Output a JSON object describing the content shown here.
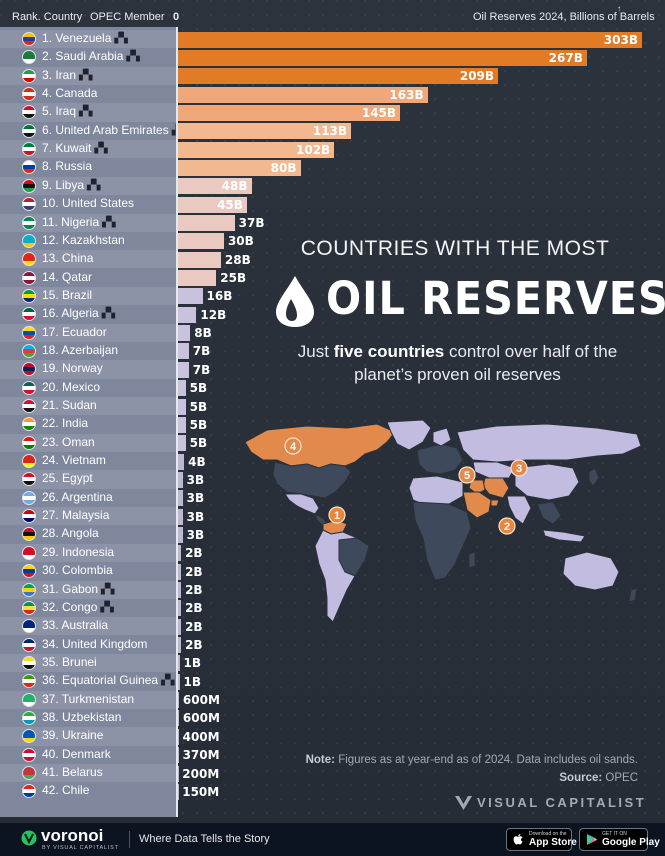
{
  "header": {
    "rank_country": "Rank. Country",
    "opec_member": "OPEC Member",
    "zero": "0",
    "reserves_axis": "Oil Reserves 2024, Billions of Barrels"
  },
  "title": {
    "line1": "COUNTRIES WITH THE MOST",
    "line2": "OIL RESERVES",
    "subtitle_pre": "Just ",
    "subtitle_bold": "five countries",
    "subtitle_post": " control over half of the planet’s proven oil reserves"
  },
  "map_markers": [
    "1",
    "2",
    "3",
    "4",
    "5"
  ],
  "note": {
    "label": "Note:",
    "text": "Figures as at year-end as of 2024. Data includes oil sands.",
    "source_label": "Source:",
    "source_text": "OPEC"
  },
  "brand": {
    "visual_capitalist": "VISUAL CAPITALIST",
    "voronoi": "voronoi",
    "voronoi_sub": "BY VISUAL CAPITALIST",
    "tagline": "Where Data Tells the Story",
    "app_store_small": "Download on the",
    "app_store": "App Store",
    "google_play_small": "GET IT ON",
    "google_play": "Google Play"
  },
  "colors": {
    "bar_top": "#e27b25",
    "bar_mid": "#f1c8b2",
    "bar_low": "#c9c2df",
    "bar_tail": "#bdb7d6",
    "panel": "#7f879d",
    "marker": "#e8873a",
    "map_land_dark": "#3e4a5c",
    "map_land_light": "#c2bde0",
    "map_land_orange": "#e18a4c"
  },
  "chart_data": {
    "type": "bar",
    "orientation": "horizontal",
    "title": "COUNTRIES WITH THE MOST OIL RESERVES",
    "xlabel": "Oil Reserves 2024, Billions of Barrels",
    "unit": "billion barrels",
    "xlim": [
      0,
      303
    ],
    "categories": [
      "1. Venezuela",
      "2. Saudi Arabia",
      "3. Iran",
      "4. Canada",
      "5. Iraq",
      "6. United Arab Emirates",
      "7. Kuwait",
      "8. Russia",
      "9. Libya",
      "10. United States",
      "11. Nigeria",
      "12. Kazakhstan",
      "13. China",
      "14. Qatar",
      "15. Brazil",
      "16. Algeria",
      "17. Ecuador",
      "18. Azerbaijan",
      "19. Norway",
      "20. Mexico",
      "21. Sudan",
      "22. India",
      "23. Oman",
      "24. Vietnam",
      "25. Egypt",
      "26. Argentina",
      "27. Malaysia",
      "28. Angola",
      "29. Indonesia",
      "30. Colombia",
      "31. Gabon",
      "32. Congo",
      "33. Australia",
      "34. United Kingdom",
      "35. Brunei",
      "36. Equatorial Guinea",
      "37. Turkmenistan",
      "38. Uzbekistan",
      "39. Ukraine",
      "40. Denmark",
      "41. Belarus",
      "42. Chile"
    ],
    "values": [
      303,
      267,
      209,
      163,
      145,
      113,
      102,
      80,
      48,
      45,
      37,
      30,
      28,
      25,
      16,
      12,
      8,
      7,
      7,
      5,
      5,
      5,
      5,
      4,
      3,
      3,
      3,
      3,
      2,
      2,
      2,
      2,
      2,
      2,
      1,
      1,
      0.6,
      0.6,
      0.4,
      0.37,
      0.2,
      0.15
    ],
    "labels": [
      "303B",
      "267B",
      "209B",
      "163B",
      "145B",
      "113B",
      "102B",
      "80B",
      "48B",
      "45B",
      "37B",
      "30B",
      "28B",
      "25B",
      "16B",
      "12B",
      "8B",
      "7B",
      "7B",
      "5B",
      "5B",
      "5B",
      "5B",
      "4B",
      "3B",
      "3B",
      "3B",
      "3B",
      "2B",
      "2B",
      "2B",
      "2B",
      "2B",
      "2B",
      "1B",
      "1B",
      "600M",
      "600M",
      "400M",
      "370M",
      "200M",
      "150M"
    ],
    "opec_member": [
      true,
      true,
      true,
      false,
      true,
      true,
      true,
      false,
      true,
      false,
      true,
      false,
      false,
      false,
      false,
      true,
      false,
      false,
      false,
      false,
      false,
      false,
      false,
      false,
      false,
      false,
      false,
      false,
      false,
      false,
      true,
      true,
      false,
      false,
      false,
      true,
      false,
      false,
      false,
      false,
      false,
      false
    ],
    "flag_colors": [
      [
        "#f5c400",
        "#1e3f9c",
        "#d52b1e"
      ],
      [
        "#1c7a3a",
        "#1c7a3a",
        "#ffffff"
      ],
      [
        "#239f40",
        "#ffffff",
        "#da0000"
      ],
      [
        "#d52b1e",
        "#ffffff",
        "#d52b1e"
      ],
      [
        "#ce1126",
        "#ffffff",
        "#111111"
      ],
      [
        "#00732f",
        "#ffffff",
        "#111111"
      ],
      [
        "#007a3d",
        "#ffffff",
        "#ce1126"
      ],
      [
        "#ffffff",
        "#0039a6",
        "#d52b1e"
      ],
      [
        "#e70013",
        "#111111",
        "#239e46"
      ],
      [
        "#b22234",
        "#ffffff",
        "#3c3b6e"
      ],
      [
        "#008751",
        "#ffffff",
        "#008751"
      ],
      [
        "#00afca",
        "#00afca",
        "#fec50c"
      ],
      [
        "#de2910",
        "#de2910",
        "#ffde00"
      ],
      [
        "#8a1538",
        "#ffffff",
        "#8a1538"
      ],
      [
        "#009c3b",
        "#ffdf00",
        "#002776"
      ],
      [
        "#006233",
        "#ffffff",
        "#d21034"
      ],
      [
        "#ffdd00",
        "#034ea2",
        "#ed1c24"
      ],
      [
        "#00b5e2",
        "#ef3340",
        "#509e2f"
      ],
      [
        "#ba0c2f",
        "#00205b",
        "#ba0c2f"
      ],
      [
        "#006847",
        "#ffffff",
        "#ce1126"
      ],
      [
        "#d21034",
        "#ffffff",
        "#111111"
      ],
      [
        "#ff9933",
        "#ffffff",
        "#138808"
      ],
      [
        "#db161b",
        "#ffffff",
        "#008000"
      ],
      [
        "#da251d",
        "#da251d",
        "#ffff00"
      ],
      [
        "#ce1126",
        "#ffffff",
        "#111111"
      ],
      [
        "#74acdf",
        "#ffffff",
        "#74acdf"
      ],
      [
        "#cc0001",
        "#ffffff",
        "#010066"
      ],
      [
        "#cc092f",
        "#111111",
        "#ffcb00"
      ],
      [
        "#ce1126",
        "#ce1126",
        "#ffffff"
      ],
      [
        "#fcd116",
        "#003893",
        "#ce1126"
      ],
      [
        "#009e60",
        "#fcd116",
        "#3a75c4"
      ],
      [
        "#009543",
        "#fbde4a",
        "#dc241f"
      ],
      [
        "#00247d",
        "#00247d",
        "#ffffff"
      ],
      [
        "#012169",
        "#ffffff",
        "#c8102e"
      ],
      [
        "#f7e017",
        "#ffffff",
        "#111111"
      ],
      [
        "#3e9a00",
        "#ffffff",
        "#e32118"
      ],
      [
        "#28ae66",
        "#28ae66",
        "#ffffff"
      ],
      [
        "#1eb53a",
        "#ffffff",
        "#0099b5"
      ],
      [
        "#0057b7",
        "#0057b7",
        "#ffd700"
      ],
      [
        "#c8102e",
        "#ffffff",
        "#c8102e"
      ],
      [
        "#c8313e",
        "#c8313e",
        "#4aa657"
      ],
      [
        "#d52b1e",
        "#ffffff",
        "#0039a6"
      ]
    ]
  }
}
